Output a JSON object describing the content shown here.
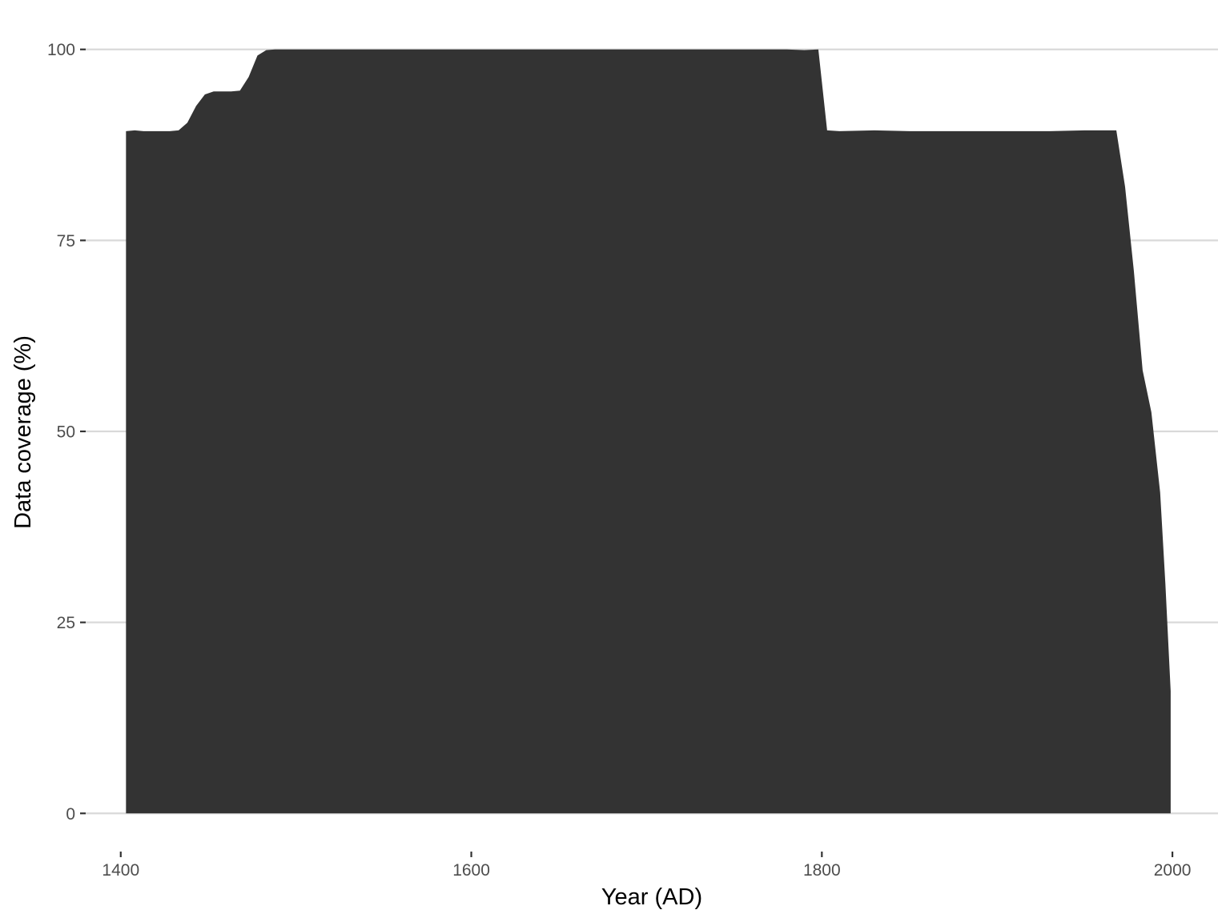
{
  "chart_data": {
    "type": "area",
    "title": "",
    "xlabel": "Year (AD)",
    "ylabel": "Data coverage (%)",
    "xlim": [
      1380,
      2026
    ],
    "ylim": [
      -5,
      105
    ],
    "x_ticks": [
      1400,
      1600,
      1800,
      2000
    ],
    "y_ticks": [
      0,
      25,
      50,
      75,
      100
    ],
    "grid": "horizontal",
    "legend": "none",
    "fill_color": "#333333",
    "series": [
      {
        "x": [
          1403,
          1408,
          1413,
          1418,
          1423,
          1428,
          1433,
          1438,
          1443,
          1448,
          1453,
          1458,
          1463,
          1468,
          1473,
          1478,
          1483,
          1488,
          1493,
          1500,
          1520,
          1540,
          1560,
          1580,
          1600,
          1620,
          1640,
          1660,
          1680,
          1700,
          1720,
          1740,
          1760,
          1780,
          1790,
          1798,
          1803,
          1810,
          1830,
          1850,
          1870,
          1890,
          1910,
          1930,
          1950,
          1965,
          1968,
          1973,
          1978,
          1983,
          1988,
          1993,
          1996,
          1999
        ],
        "y": [
          89.3,
          89.4,
          89.3,
          89.3,
          89.3,
          89.3,
          89.4,
          90.4,
          92.6,
          94.1,
          94.5,
          94.5,
          94.5,
          94.6,
          96.4,
          99.2,
          99.9,
          100,
          100,
          100,
          100,
          100,
          100,
          100,
          100,
          100,
          100,
          100,
          100,
          100,
          100,
          100,
          100,
          100,
          99.9,
          100,
          89.4,
          89.3,
          89.4,
          89.3,
          89.3,
          89.3,
          89.3,
          89.3,
          89.4,
          89.4,
          89.4,
          82.0,
          71.0,
          58.0,
          52.5,
          42.0,
          30.0,
          16.0
        ]
      }
    ]
  }
}
